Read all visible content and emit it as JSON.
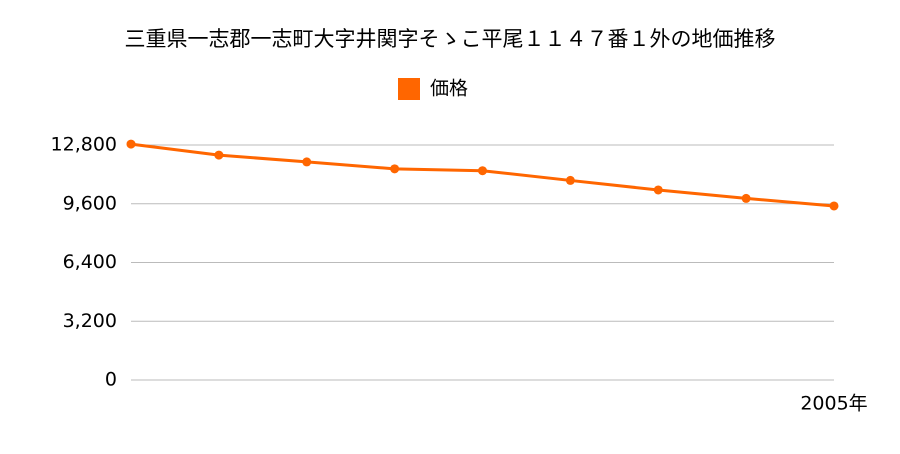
{
  "chart_data": {
    "type": "line",
    "title": "三重県一志郡一志町大字井関字そゝこ平尾１１４７番１外の地価推移",
    "categories": [
      null,
      null,
      null,
      null,
      null,
      null,
      null,
      null,
      "2005年"
    ],
    "series": [
      {
        "name": "価格",
        "color": "#ff6600",
        "values": [
          12850,
          12250,
          11880,
          11500,
          11400,
          10870,
          10350,
          9890,
          9480
        ]
      }
    ],
    "ylim": [
      0,
      12800
    ],
    "yticks": [
      0,
      {
        "value": 3200,
        "label": "3,200"
      },
      {
        "value": 6400,
        "label": "6,400"
      },
      {
        "value": 9600,
        "label": "9,600"
      },
      {
        "value": 12800,
        "label": "12,800"
      }
    ],
    "grid": true
  }
}
